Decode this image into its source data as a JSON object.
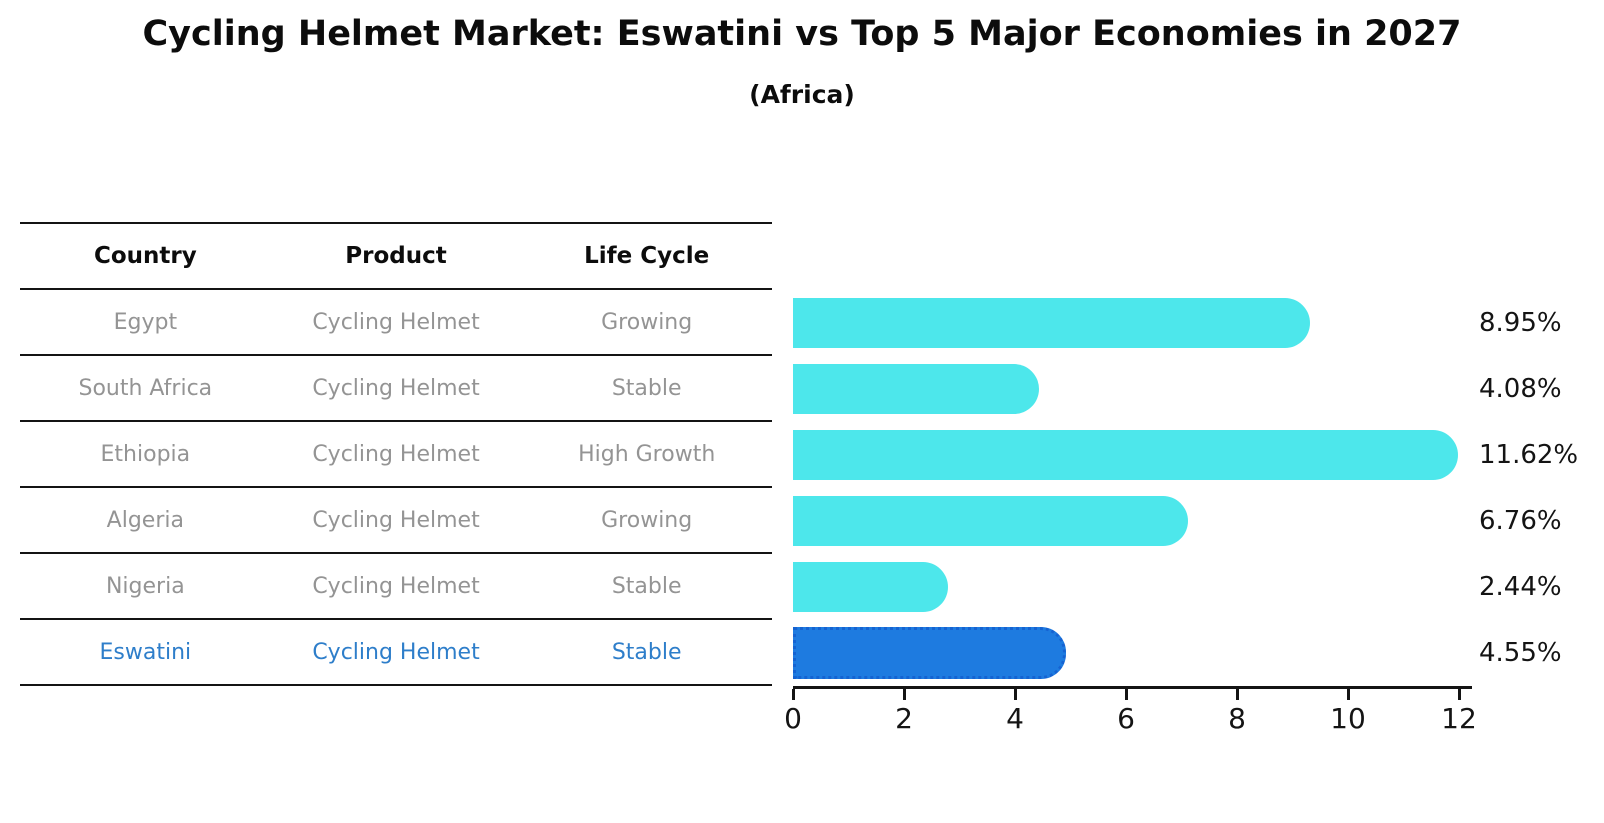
{
  "title": "Cycling Helmet Market: Eswatini vs Top 5 Major Economies in 2027",
  "subtitle": "(Africa)",
  "table": {
    "headers": [
      "Country",
      "Product",
      "Life Cycle"
    ],
    "rows": [
      {
        "country": "Egypt",
        "product": "Cycling Helmet",
        "life_cycle": "Growing",
        "highlight": false
      },
      {
        "country": "South Africa",
        "product": "Cycling Helmet",
        "life_cycle": "Stable",
        "highlight": false
      },
      {
        "country": "Ethiopia",
        "product": "Cycling Helmet",
        "life_cycle": "High Growth",
        "highlight": false
      },
      {
        "country": "Algeria",
        "product": "Cycling Helmet",
        "life_cycle": "Growing",
        "highlight": false
      },
      {
        "country": "Nigeria",
        "product": "Cycling Helmet",
        "life_cycle": "Stable",
        "highlight": false
      },
      {
        "country": "Eswatini",
        "product": "Cycling Helmet",
        "life_cycle": "Stable",
        "highlight": true
      }
    ]
  },
  "chart_data": {
    "type": "bar",
    "orientation": "horizontal",
    "title": "Cycling Helmet Market: Eswatini vs Top 5 Major Economies in 2027",
    "subtitle": "(Africa)",
    "categories": [
      "Egypt",
      "South Africa",
      "Ethiopia",
      "Algeria",
      "Nigeria",
      "Eswatini"
    ],
    "values": [
      8.95,
      4.08,
      11.62,
      6.76,
      2.44,
      4.55
    ],
    "value_labels": [
      "8.95%",
      "4.08%",
      "11.62%",
      "6.76%",
      "2.44%",
      "4.55%"
    ],
    "unit": "percent",
    "xticks": [
      0,
      2,
      4,
      6,
      8,
      10,
      12
    ],
    "xlim": [
      0,
      12.2
    ],
    "grid": false,
    "legend": false,
    "bar_color": "#4de7eb",
    "highlight_bar_color": "#1e7be0",
    "highlight_border_color": "#1563d2",
    "highlight_text_color": "#2e7eca",
    "highlight_index": 5
  }
}
